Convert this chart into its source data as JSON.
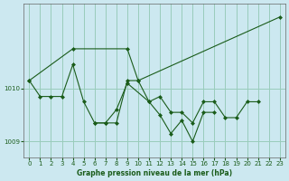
{
  "title": "Graphe pression niveau de la mer (hPa)",
  "background_color": "#cce8f0",
  "grid_color": "#99ccbb",
  "line_color": "#1a5c1a",
  "marker_color": "#1a5c1a",
  "xlim": [
    -0.5,
    23.5
  ],
  "ylim": [
    1008.7,
    1011.6
  ],
  "yticks": [
    1009,
    1010
  ],
  "xticks": [
    0,
    1,
    2,
    3,
    4,
    5,
    6,
    7,
    8,
    9,
    10,
    11,
    12,
    13,
    14,
    15,
    16,
    17,
    18,
    19,
    20,
    21,
    22,
    23
  ],
  "series": [
    {
      "x": [
        0,
        1,
        2,
        3,
        4,
        5,
        6,
        7,
        8,
        9,
        10,
        11,
        12,
        13,
        14,
        15,
        16,
        17,
        18,
        19,
        20,
        21
      ],
      "y": [
        1010.15,
        1009.85,
        1009.85,
        1009.85,
        1010.45,
        1009.75,
        1009.35,
        1009.35,
        1009.35,
        1010.15,
        1010.15,
        1009.75,
        1009.85,
        1009.55,
        1009.55,
        1009.35,
        1009.75,
        1009.75,
        1009.45,
        1009.45,
        1009.75,
        1009.75
      ]
    },
    {
      "x": [
        0,
        4,
        9,
        10,
        23
      ],
      "y": [
        1010.15,
        1010.75,
        1010.75,
        1010.15,
        1011.35
      ]
    },
    {
      "x": [
        6,
        7,
        8,
        9,
        11,
        12,
        13,
        14,
        15,
        16,
        17
      ],
      "y": [
        1009.35,
        1009.35,
        1009.6,
        1010.1,
        1009.75,
        1009.5,
        1009.15,
        1009.4,
        1009.0,
        1009.55,
        1009.55
      ]
    }
  ]
}
